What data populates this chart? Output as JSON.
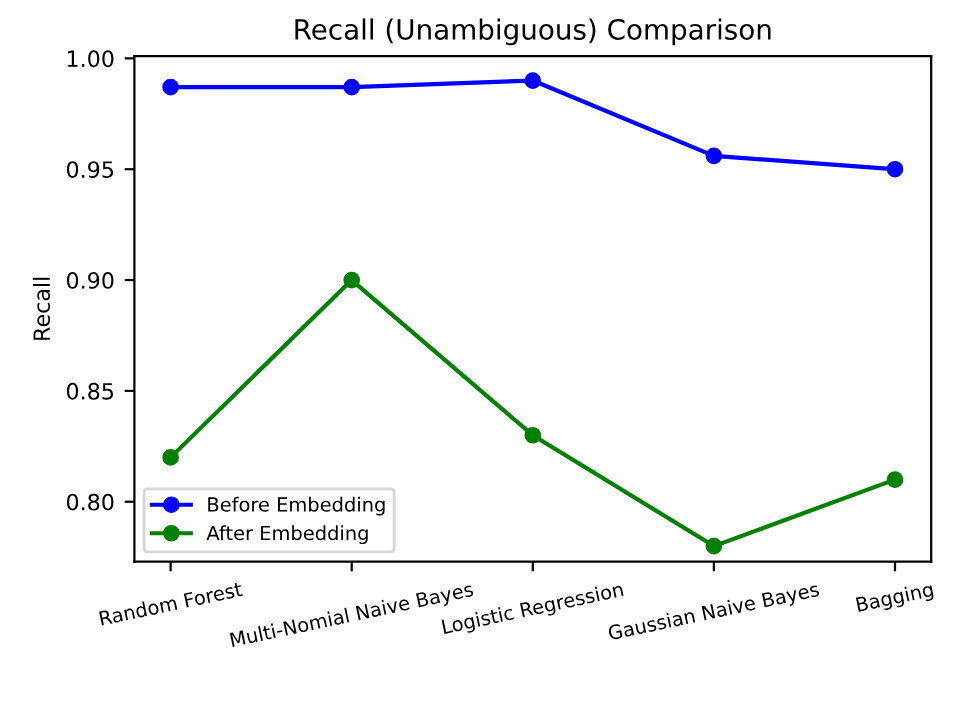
{
  "chart_data": {
    "type": "line",
    "title": "Recall (Unambiguous) Comparison",
    "ylabel": "Recall",
    "categories": [
      "Random Forest",
      "Multi-Nomial Naive Bayes",
      "Logistic Regression",
      "Gaussian Naive Bayes",
      "Bagging"
    ],
    "series": [
      {
        "name": "Before Embedding",
        "color": "#0000ff",
        "values": [
          0.987,
          0.987,
          0.99,
          0.956,
          0.95
        ]
      },
      {
        "name": "After Embedding",
        "color": "#008000",
        "values": [
          0.82,
          0.9,
          0.83,
          0.78,
          0.81
        ]
      }
    ],
    "ylim": [
      0.773,
      1.001
    ],
    "yticks": [
      {
        "value": 0.8,
        "label": "0.80"
      },
      0.85,
      {
        "value": 0.9,
        "label": "0.90"
      },
      0.95,
      {
        "value": 1.0,
        "label": "1.00"
      }
    ],
    "legend": "lower left",
    "marker": "circle",
    "line_style": "solid",
    "grid": false
  }
}
